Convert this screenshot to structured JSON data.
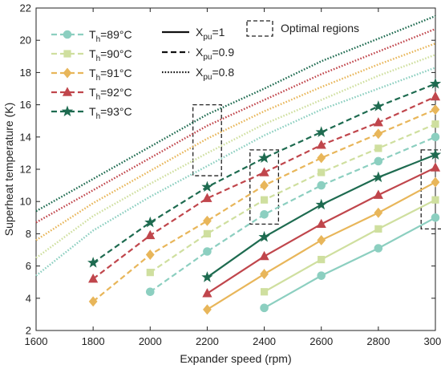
{
  "chart_data": {
    "type": "line",
    "xlabel": "Expander speed (rpm)",
    "ylabel": "Superheat temperature (K)",
    "xlim": [
      1600,
      3000
    ],
    "ylim": [
      2,
      22
    ],
    "xticks": [
      1600,
      1800,
      2000,
      2200,
      2400,
      2600,
      2800,
      3000
    ],
    "yticks": [
      2,
      4,
      6,
      8,
      10,
      12,
      14,
      16,
      18,
      20,
      22
    ],
    "grid": false,
    "legend_position": "top-left",
    "temperatures": [
      {
        "label": "T",
        "sub": "h",
        "rest": "=89°C",
        "color": "#8ccfc0",
        "marker": "circle"
      },
      {
        "label": "T",
        "sub": "h",
        "rest": "=90°C",
        "color": "#cfdf9f",
        "marker": "square"
      },
      {
        "label": "T",
        "sub": "h",
        "rest": "=91°C",
        "color": "#e8b65a",
        "marker": "diamond"
      },
      {
        "label": "T",
        "sub": "h",
        "rest": "=92°C",
        "color": "#c0464c",
        "marker": "triangle"
      },
      {
        "label": "T",
        "sub": "h",
        "rest": "=93°C",
        "color": "#1e6b50",
        "marker": "star"
      }
    ],
    "ratios": [
      {
        "label": "X",
        "sub": "pu",
        "rest": "=1",
        "dash": "solid"
      },
      {
        "label": "X",
        "sub": "pu",
        "rest": "=0.9",
        "dash": "dashed"
      },
      {
        "label": "X",
        "sub": "pu",
        "rest": "=0.8",
        "dash": "dotted"
      }
    ],
    "optimal_label": "Optimal regions",
    "series": [
      {
        "temp": 0,
        "ratio": 0,
        "x": [
          2400,
          2600,
          2800,
          3000
        ],
        "y": [
          3.4,
          5.4,
          7.1,
          9.0
        ]
      },
      {
        "temp": 1,
        "ratio": 0,
        "x": [
          2400,
          2600,
          2800,
          3000
        ],
        "y": [
          4.4,
          6.4,
          8.3,
          10.1
        ]
      },
      {
        "temp": 2,
        "ratio": 0,
        "x": [
          2200,
          2400,
          2600,
          2800,
          3000
        ],
        "y": [
          3.3,
          5.5,
          7.6,
          9.3,
          11.2
        ]
      },
      {
        "temp": 3,
        "ratio": 0,
        "x": [
          2200,
          2400,
          2600,
          2800,
          3000
        ],
        "y": [
          4.3,
          6.6,
          8.6,
          10.4,
          12.1
        ]
      },
      {
        "temp": 4,
        "ratio": 0,
        "x": [
          2200,
          2400,
          2600,
          2800,
          3000
        ],
        "y": [
          5.3,
          7.8,
          9.8,
          11.5,
          12.9
        ]
      },
      {
        "temp": 0,
        "ratio": 1,
        "x": [
          2000,
          2200,
          2400,
          2600,
          2800,
          3000
        ],
        "y": [
          4.4,
          6.9,
          9.2,
          11.0,
          12.5,
          14.0
        ]
      },
      {
        "temp": 1,
        "ratio": 1,
        "x": [
          2000,
          2200,
          2400,
          2600,
          2800,
          3000
        ],
        "y": [
          5.6,
          8.0,
          10.1,
          11.8,
          13.3,
          14.8
        ]
      },
      {
        "temp": 2,
        "ratio": 1,
        "x": [
          1800,
          2000,
          2200,
          2400,
          2600,
          2800,
          3000
        ],
        "y": [
          3.8,
          6.7,
          8.8,
          11.0,
          12.7,
          14.2,
          15.7
        ]
      },
      {
        "temp": 3,
        "ratio": 1,
        "x": [
          1800,
          2000,
          2200,
          2400,
          2600,
          2800,
          3000
        ],
        "y": [
          5.2,
          7.9,
          10.2,
          11.8,
          13.5,
          14.9,
          16.5
        ]
      },
      {
        "temp": 4,
        "ratio": 1,
        "x": [
          1800,
          2000,
          2200,
          2400,
          2600,
          2800,
          3000
        ],
        "y": [
          6.2,
          8.7,
          10.9,
          12.7,
          14.3,
          15.9,
          17.3
        ]
      },
      {
        "temp": 0,
        "ratio": 2,
        "x": [
          1600,
          1800,
          2000,
          2200,
          2400,
          2600,
          2800,
          3000
        ],
        "y": [
          5.4,
          8.2,
          10.3,
          12.2,
          14.1,
          15.7,
          17.0,
          18.3
        ]
      },
      {
        "temp": 1,
        "ratio": 2,
        "x": [
          1600,
          1800,
          2000,
          2200,
          2400,
          2600,
          2800,
          3000
        ],
        "y": [
          6.5,
          9.1,
          11.1,
          13.0,
          14.8,
          16.3,
          17.8,
          19.1
        ]
      },
      {
        "temp": 2,
        "ratio": 2,
        "x": [
          1600,
          1800,
          2000,
          2200,
          2400,
          2600,
          2800,
          3000
        ],
        "y": [
          7.6,
          9.9,
          11.9,
          13.9,
          15.6,
          17.1,
          18.5,
          19.8
        ]
      },
      {
        "temp": 3,
        "ratio": 2,
        "x": [
          1600,
          1800,
          2000,
          2200,
          2400,
          2600,
          2800,
          3000
        ],
        "y": [
          8.7,
          10.7,
          12.7,
          14.7,
          16.3,
          17.9,
          19.3,
          20.7
        ]
      },
      {
        "temp": 4,
        "ratio": 2,
        "x": [
          1600,
          1800,
          2000,
          2200,
          2400,
          2600,
          2800,
          3000
        ],
        "y": [
          9.4,
          11.4,
          13.4,
          15.4,
          17.0,
          18.7,
          20.1,
          21.5
        ]
      }
    ],
    "optimal_regions": [
      {
        "x": [
          2150,
          2250
        ],
        "y": [
          11.6,
          16.0
        ]
      },
      {
        "x": [
          2350,
          2450
        ],
        "y": [
          8.6,
          13.2
        ]
      },
      {
        "x": [
          2950,
          3050
        ],
        "y": [
          8.3,
          13.2
        ]
      }
    ]
  }
}
